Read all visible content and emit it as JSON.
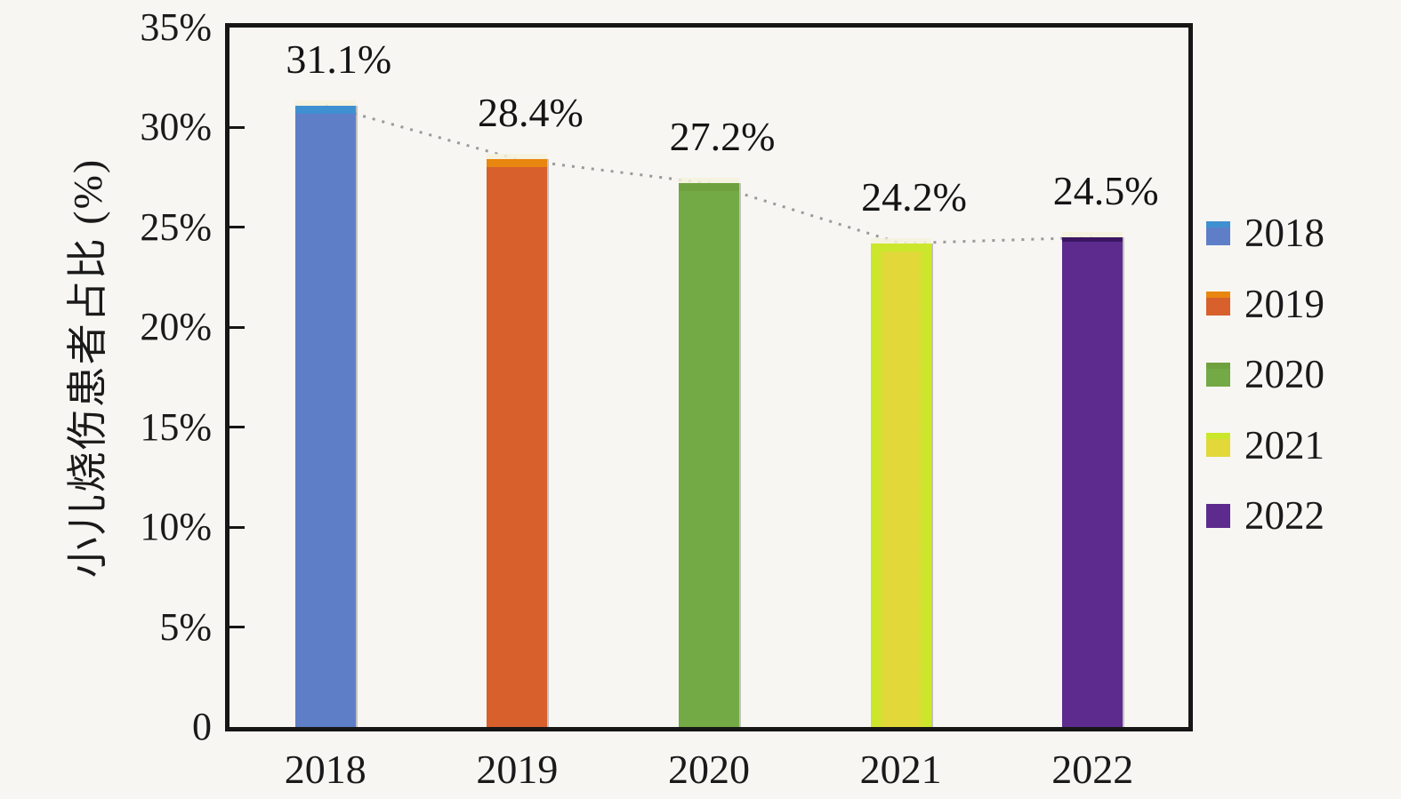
{
  "chart_data": {
    "type": "bar",
    "title": "",
    "xlabel": "",
    "ylabel": "小儿烧伤患者占比 (%)",
    "categories": [
      "2018",
      "2019",
      "2020",
      "2021",
      "2022"
    ],
    "values": [
      31.1,
      28.4,
      27.2,
      24.2,
      24.5
    ],
    "value_labels": [
      "31.1%",
      "28.4%",
      "27.2%",
      "24.2%",
      "24.5%"
    ],
    "ylim": [
      0,
      35
    ],
    "yticks": [
      0,
      5,
      10,
      15,
      20,
      25,
      30,
      35
    ],
    "ytick_labels": [
      "0",
      "5%",
      "10%",
      "15%",
      "20%",
      "25%",
      "30%",
      "35%"
    ],
    "grid": false,
    "legend": {
      "position": "right",
      "entries": [
        "2018",
        "2019",
        "2020",
        "2021",
        "2022"
      ]
    },
    "series_colors": [
      "#5f7ec8",
      "#d7602d",
      "#74aa45",
      "#e2d83a",
      "#5d2b8d"
    ],
    "series_cap_colors": [
      "#3f90d1",
      "#e8860f",
      "#6fa23f",
      "#cbe72b",
      "#3a1663"
    ],
    "bar_halo_color": "#f4f1da",
    "trendline": {
      "style": "dotted",
      "color": "#9a9a9a"
    },
    "background": "#f7f6f3",
    "axis_color": "#161616",
    "text_color": "#1a1a1a"
  }
}
